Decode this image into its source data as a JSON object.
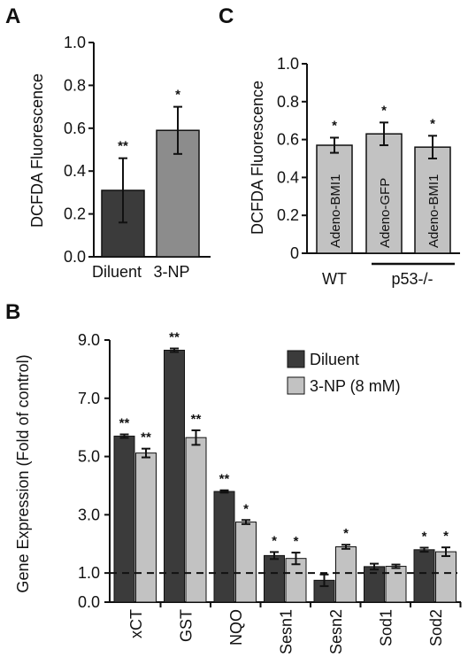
{
  "colors": {
    "dark": "#3b3b3b",
    "mid": "#8c8c8c",
    "light": "#c2c2c2",
    "stroke": "#111111"
  },
  "panel_letters": [
    "A",
    "B",
    "C"
  ],
  "chart_data": [
    {
      "panel": "A",
      "type": "bar",
      "ylabel": "DCFDA Fluorescence",
      "ylim": [
        0,
        1.0
      ],
      "yticks": [
        "0.0",
        "0.2",
        "0.4",
        "0.6",
        "0.8",
        "1.0"
      ],
      "categories": [
        "Diluent",
        "3-NP"
      ],
      "values": [
        0.31,
        0.59
      ],
      "errors": [
        0.15,
        0.11
      ],
      "significance": [
        "**",
        "*"
      ],
      "bar_colors": [
        "#3b3b3b",
        "#8c8c8c"
      ]
    },
    {
      "panel": "C",
      "type": "bar",
      "ylabel": "DCFDA Fluorescence",
      "ylim": [
        0,
        1.0
      ],
      "yticks": [
        "0",
        "0.2",
        "0.4",
        "0.6",
        "0.8",
        "1.0"
      ],
      "bar_labels": [
        "Adeno-BMI1",
        "Adeno-GFP",
        "Adeno-BMI1"
      ],
      "values": [
        0.57,
        0.63,
        0.56
      ],
      "errors": [
        0.04,
        0.06,
        0.06
      ],
      "significance": [
        "*",
        "*",
        "*"
      ],
      "group_labels": [
        "WT",
        "p53-/-"
      ],
      "bar_color": "#c2c2c2"
    },
    {
      "panel": "B",
      "type": "bar",
      "ylabel": "Gene Expression (Fold of control)",
      "ylim": [
        0,
        9.0
      ],
      "yticks": [
        "0.0",
        "1.0",
        "3.0",
        "5.0",
        "7.0",
        "9.0"
      ],
      "ytick_values": [
        0,
        1,
        3,
        5,
        7,
        9
      ],
      "categories": [
        "xCT",
        "GST",
        "NQO",
        "Sesn1",
        "Sesn2",
        "Sod1",
        "Sod2"
      ],
      "series": [
        {
          "name": "Diluent",
          "color": "#3b3b3b",
          "values": [
            5.7,
            8.65,
            3.8,
            1.6,
            0.75,
            1.22,
            1.8
          ],
          "errors": [
            0.06,
            0.06,
            0.04,
            0.12,
            0.2,
            0.1,
            0.07
          ],
          "significance": [
            "**",
            "**",
            "**",
            "*",
            "",
            "",
            "*"
          ]
        },
        {
          "name": "3-NP (8 mM)",
          "color": "#c2c2c2",
          "values": [
            5.12,
            5.65,
            2.75,
            1.5,
            1.9,
            1.23,
            1.73
          ],
          "errors": [
            0.15,
            0.25,
            0.07,
            0.2,
            0.07,
            0.06,
            0.15
          ],
          "significance": [
            "**",
            "**",
            "*",
            "*",
            "*",
            "",
            "*"
          ]
        }
      ],
      "reference_line": 1.0,
      "legend_position": "top-right"
    }
  ]
}
